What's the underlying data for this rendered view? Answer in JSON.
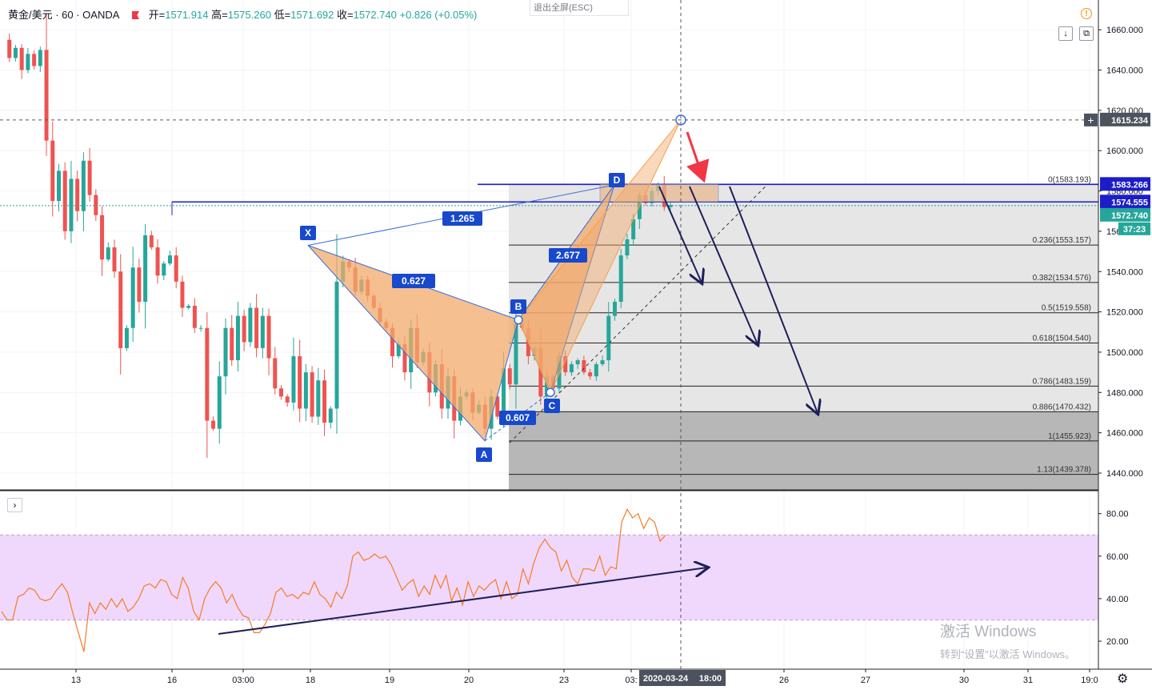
{
  "header": {
    "symbol": "黄金/美元 · 60 · OANDA",
    "open_label": "开=",
    "open": "1571.914",
    "high_label": "高=",
    "high": "1575.260",
    "low_label": "低=",
    "low": "1571.692",
    "close_label": "收=",
    "close": "1572.740",
    "change": "+0.826 (+0.05%)"
  },
  "toolbar": {
    "exit_fullscreen": "退出全屏(ESC)",
    "download_icon": "↓",
    "screenshot_icon": "⧉",
    "warning_icon": "!"
  },
  "collapse_button": "›",
  "settings_icon": "⚙",
  "watermark": {
    "line1": "激活 Windows",
    "line2": "转到“设置”以激活 Windows。"
  },
  "colors": {
    "bull": "#26a69a",
    "bear": "#ef5350",
    "pattern_fill": "#f2a96b",
    "pattern_line": "#3a6fd8",
    "hline": "#1c1cc9",
    "arrow": "#1e1e5a",
    "red_arrow": "#f23645",
    "rsi": "#f57c28",
    "rsi_band": "#efd8fb"
  },
  "chart_data": {
    "type": "candlestick",
    "symbol": "黄金/美元",
    "timeframe": "60",
    "source": "OANDA",
    "ylim": [
      1428,
      1672
    ],
    "y_ticks": [
      "1660.000",
      "1640.000",
      "1620.000",
      "1600.000",
      "1580.000",
      "1560.000",
      "1540.000",
      "1520.000",
      "1500.000",
      "1480.000",
      "1460.000",
      "1440.000"
    ],
    "y_tick_values": [
      1660,
      1640,
      1620,
      1600,
      1580,
      1560,
      1540,
      1520,
      1500,
      1480,
      1460,
      1440
    ],
    "x_ticks": [
      "13",
      "16",
      "03:00",
      "18",
      "19",
      "20",
      "23",
      "03:",
      "26",
      "27",
      "30",
      "31",
      "19:0"
    ],
    "crosshair_time": "2020-03-24",
    "crosshair_clock": "18:00",
    "price_labels": {
      "crosshair": "1615.234",
      "level_d": "1583.266",
      "level_xline": "1574.555",
      "last": "1572.740",
      "countdown": "37:23"
    },
    "ohlc_path": [
      1655,
      1646,
      1651,
      1640,
      1648,
      1642,
      1650,
      1605,
      1575,
      1590,
      1560,
      1586,
      1570,
      1595,
      1578,
      1568,
      1546,
      1552,
      1540,
      1502,
      1512,
      1542,
      1525,
      1558,
      1552,
      1538,
      1544,
      1548,
      1535,
      1522,
      1523,
      1512,
      1512,
      1466,
      1462,
      1488,
      1512,
      1496,
      1518,
      1505,
      1522,
      1502,
      1518,
      1497,
      1482,
      1478,
      1475,
      1498,
      1472,
      1490,
      1468,
      1486,
      1465,
      1472,
      1535,
      1545,
      1542,
      1530,
      1536,
      1528,
      1522,
      1515,
      1512,
      1498,
      1504,
      1490,
      1512,
      1495,
      1500,
      1480,
      1494,
      1472,
      1488,
      1466,
      1478,
      1480,
      1470,
      1474,
      1462,
      1478,
      1468,
      1492,
      1484,
      1514,
      1512,
      1498,
      1502,
      1478,
      1488,
      1482,
      1498,
      1490,
      1494,
      1496,
      1490,
      1488,
      1494,
      1496,
      1518,
      1525,
      1548,
      1556,
      1566,
      1578,
      1574,
      1580,
      1583,
      1572,
      1573
    ],
    "harmonic_pattern": {
      "points": [
        {
          "label": "X",
          "price": 1553
        },
        {
          "label": "A",
          "price": 1456
        },
        {
          "label": "B",
          "price": 1516
        },
        {
          "label": "C",
          "price": 1480
        },
        {
          "label": "D",
          "price": 1583
        }
      ],
      "ratios": [
        "0.627",
        "0.607",
        "1.265",
        "2.677"
      ]
    },
    "fib_levels": [
      {
        "ratio": "0",
        "price": 1583.193,
        "label": "0(1583.193)"
      },
      {
        "ratio": "0.236",
        "price": 1553.157,
        "label": "0.236(1553.157)"
      },
      {
        "ratio": "0.382",
        "price": 1534.576,
        "label": "0.382(1534.576)"
      },
      {
        "ratio": "0.5",
        "price": 1519.558,
        "label": "0.5(1519.558)"
      },
      {
        "ratio": "0.618",
        "price": 1504.54,
        "label": "0.618(1504.540)"
      },
      {
        "ratio": "0.786",
        "price": 1483.159,
        "label": "0.786(1483.159)"
      },
      {
        "ratio": "0.886",
        "price": 1470.432,
        "label": "0.886(1470.432)"
      },
      {
        "ratio": "1",
        "price": 1455.923,
        "label": "1(1455.923)"
      },
      {
        "ratio": "1.13",
        "price": 1439.378,
        "label": "1.13(1439.378)"
      }
    ],
    "rsi": {
      "ylim": [
        10,
        88
      ],
      "y_ticks": [
        "80.00",
        "60.00",
        "40.00",
        "20.00"
      ],
      "y_tick_values": [
        80,
        60,
        40,
        20
      ],
      "band": [
        30,
        70
      ],
      "values": [
        34,
        30,
        30,
        41,
        42,
        45,
        44,
        40,
        39,
        40,
        44,
        47,
        43,
        33,
        24,
        15,
        38,
        33,
        38,
        35,
        40,
        36,
        40,
        34,
        36,
        40,
        46,
        47,
        45,
        49,
        48,
        42,
        40,
        50,
        45,
        34,
        30,
        40,
        45,
        48,
        45,
        38,
        42,
        36,
        32,
        31,
        24,
        24,
        28,
        33,
        43,
        45,
        41,
        42,
        40,
        43,
        42,
        48,
        42,
        40,
        36,
        43,
        40,
        46,
        60,
        62,
        58,
        59,
        61,
        59,
        60,
        56,
        50,
        44,
        47,
        49,
        41,
        46,
        42,
        51,
        45,
        51,
        39,
        45,
        37,
        48,
        41,
        46,
        44,
        47,
        49,
        40,
        48,
        40,
        42,
        54,
        47,
        57,
        64,
        68,
        64,
        62,
        53,
        58,
        50,
        47,
        54,
        54,
        53,
        60,
        51,
        55,
        54,
        76,
        82,
        78,
        80,
        73,
        78,
        76,
        67,
        70
      ]
    }
  }
}
